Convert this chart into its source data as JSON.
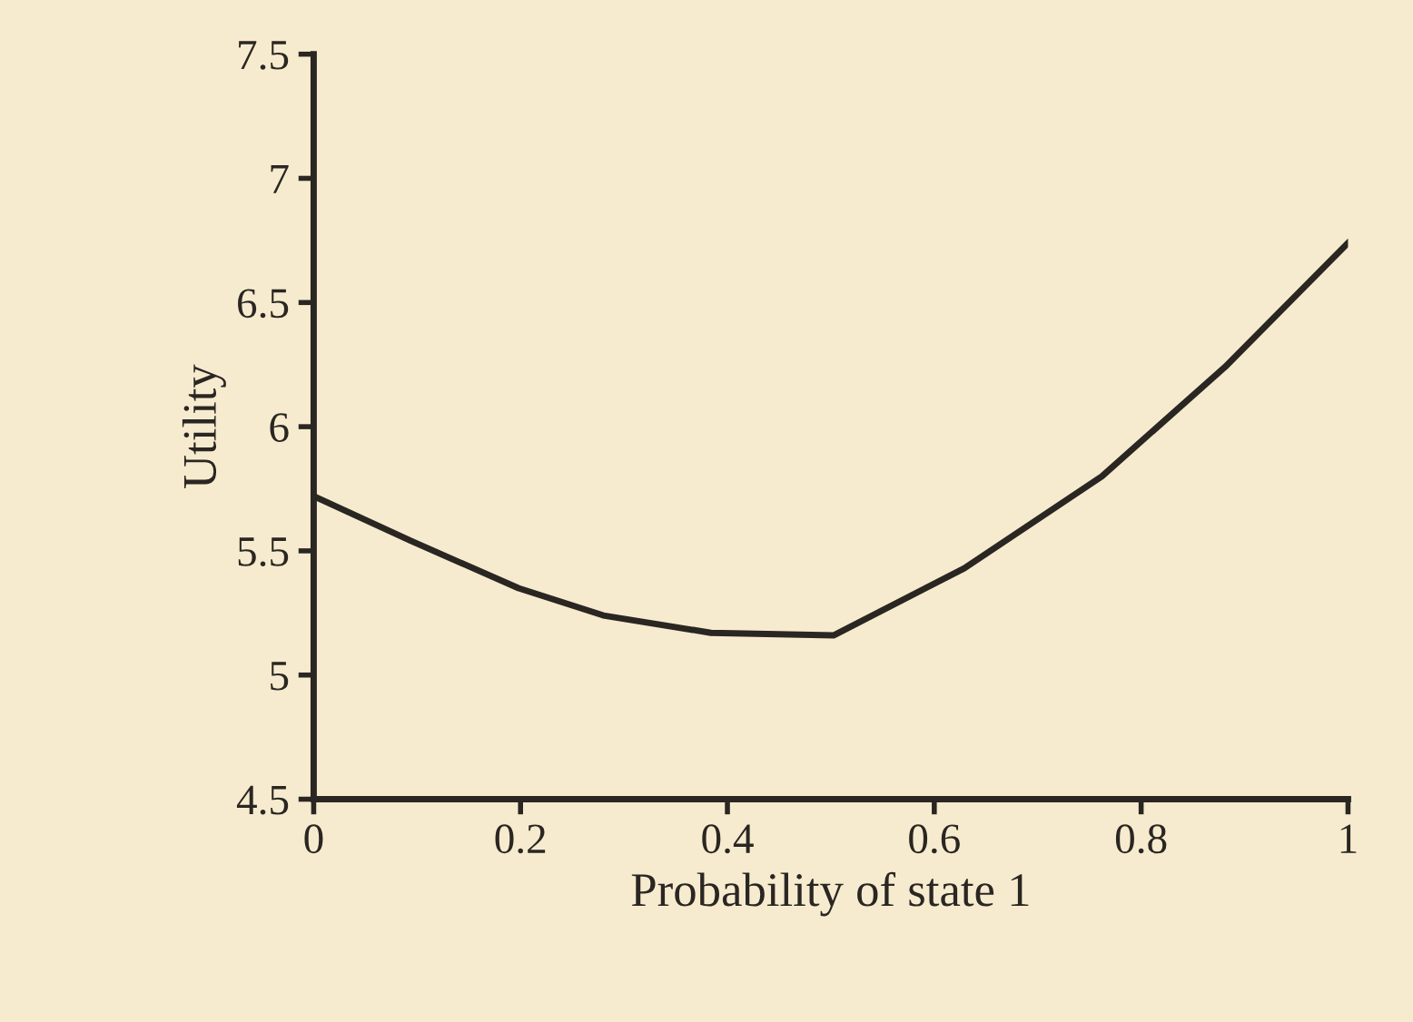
{
  "chart_data": {
    "type": "line",
    "xlabel": "Probability of state 1",
    "ylabel": "Utility",
    "x": [
      0,
      0.094,
      0.198,
      0.28,
      0.384,
      0.503,
      0.629,
      0.762,
      0.881,
      1.0
    ],
    "series": [
      {
        "color": "#2a2622",
        "values": [
          5.72,
          5.54,
          5.35,
          5.24,
          5.17,
          5.16,
          5.43,
          5.8,
          6.24,
          6.74
        ]
      }
    ],
    "xlim": [
      0,
      1
    ],
    "xticks": [
      0,
      0.2,
      0.4,
      0.6,
      0.8,
      1
    ],
    "ylim": [
      4.5,
      7.5
    ],
    "yticks": [
      4.5,
      5,
      5.5,
      6,
      6.5,
      7,
      7.5
    ],
    "grid": false,
    "legend": false,
    "marker": "none",
    "line_style": "solid"
  }
}
